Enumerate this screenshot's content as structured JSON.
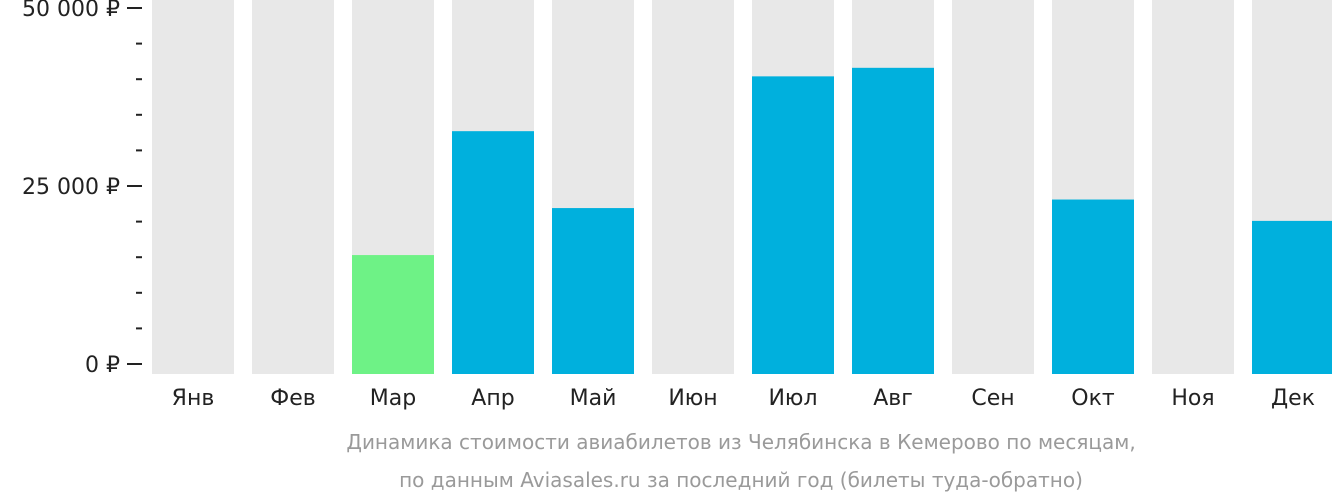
{
  "chart_data": {
    "type": "bar",
    "currency_symbol": "₽",
    "y_axis": {
      "min": 0,
      "max": 50000,
      "major_ticks": [
        0,
        25000,
        50000
      ],
      "minor_step": 5000
    },
    "y_tick_labels": [
      "0 ₽",
      "25 000 ₽",
      "50 000 ₽"
    ],
    "categories": [
      "Янв",
      "Фев",
      "Мар",
      "Апр",
      "Май",
      "Июн",
      "Июл",
      "Авг",
      "Сен",
      "Окт",
      "Ноя",
      "Дек"
    ],
    "values": [
      null,
      null,
      15300,
      32700,
      21900,
      null,
      40400,
      41600,
      null,
      23100,
      null,
      20100
    ],
    "highlight_index": 2,
    "colors": {
      "bar": "#00b0dd",
      "highlight": "#6ef286",
      "background_bar": "#e8e8e8",
      "axis": "#222222"
    },
    "grid": false
  },
  "caption": {
    "line1": "Динамика стоимости авиабилетов из Челябинска в Кемерово по месяцам,",
    "line2": "по данным Aviasales.ru за последний год (билеты туда-обратно)"
  }
}
